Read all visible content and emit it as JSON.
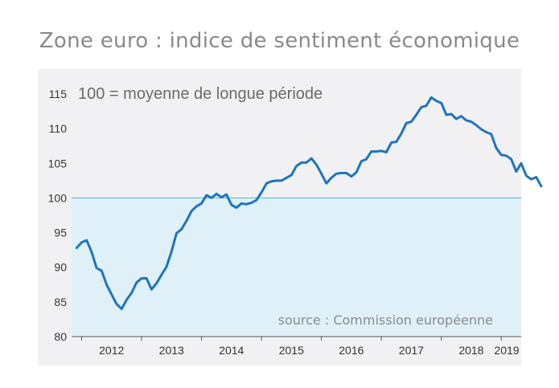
{
  "title": "Zone euro : indice de sentiment économique",
  "colors": {
    "line": "#1f74bf",
    "reference_line": "#4bb8d8",
    "below_fill": "#dff0f8",
    "plot_bg": "#f1f1f4",
    "text": "#333333"
  },
  "chart_data": {
    "type": "line",
    "title": "Zone euro : indice de sentiment économique",
    "subtitle": "100 = moyenne de longue période",
    "annotation": "source : Commission européenne",
    "xlabel": "",
    "ylabel": "",
    "ylim": [
      80,
      115
    ],
    "yticks": [
      80,
      85,
      90,
      95,
      100,
      105,
      110,
      115
    ],
    "yticks_labels": [
      "80",
      "85",
      "90",
      "95",
      "100",
      "105",
      "110",
      "115"
    ],
    "xtick_labels": [
      "2012",
      "2013",
      "2014",
      "2015",
      "2016",
      "2017",
      "2018",
      "2019"
    ],
    "xlim": [
      2011.833,
      2019.333
    ],
    "reference_value": 100,
    "grid": false,
    "series": [
      {
        "name": "Indice de sentiment économique",
        "x_start": 2011.917,
        "x_step": 0.0833333,
        "values": [
          92.8,
          93.6,
          93.9,
          92.2,
          89.9,
          89.5,
          87.5,
          86.1,
          84.7,
          84.0,
          85.3,
          86.3,
          87.8,
          88.4,
          88.4,
          86.8,
          87.7,
          88.9,
          90.1,
          92.3,
          94.9,
          95.5,
          96.7,
          98.1,
          98.8,
          99.2,
          100.4,
          100.0,
          100.6,
          100.1,
          100.5,
          99.0,
          98.6,
          99.2,
          99.1,
          99.3,
          99.7,
          100.8,
          102.1,
          102.4,
          102.5,
          102.5,
          102.9,
          103.3,
          104.6,
          105.1,
          105.1,
          105.7,
          104.8,
          103.5,
          102.1,
          102.9,
          103.5,
          103.6,
          103.6,
          103.1,
          103.7,
          105.3,
          105.6,
          106.7,
          106.7,
          106.8,
          106.6,
          108.0,
          108.1,
          109.3,
          110.8,
          111.0,
          112.0,
          113.1,
          113.3,
          114.5,
          114.0,
          113.7,
          112.0,
          112.1,
          111.4,
          111.8,
          111.2,
          111.0,
          110.5,
          109.9,
          109.5,
          109.2,
          107.2,
          106.2,
          106.1,
          105.6,
          103.8,
          105.0,
          103.2,
          102.7,
          103.0,
          101.7
        ]
      }
    ]
  }
}
